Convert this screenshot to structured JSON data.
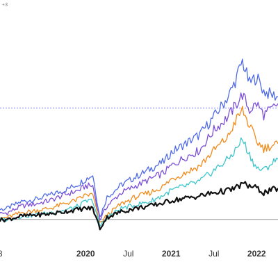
{
  "chart_data": {
    "type": "line",
    "title": "",
    "xlabel": "",
    "ylabel": "",
    "x_ticks": [
      {
        "date": "2019-01",
        "label": "8",
        "bold": false
      },
      {
        "date": "2020-01",
        "label": "2020",
        "bold": true
      },
      {
        "date": "2020-07",
        "label": "Jul",
        "bold": false
      },
      {
        "date": "2021-01",
        "label": "2021",
        "bold": true
      },
      {
        "date": "2021-07",
        "label": "Jul",
        "bold": false
      },
      {
        "date": "2022-01",
        "label": "2022",
        "bold": true
      }
    ],
    "reference_lines": [
      {
        "value": 0,
        "style": "solid",
        "color": "#999999"
      },
      {
        "value": 1,
        "style": "dashed",
        "color": "#6b6bf2"
      }
    ],
    "corner_mark": "+3",
    "colors": {
      "blue": "#4f6ae6",
      "purple": "#7c4fd6",
      "orange": "#f28a1a",
      "cyan": "#3ec5cc",
      "black": "#111111"
    },
    "ylim": [
      -0.12,
      1.75
    ],
    "xlim": [
      "2018-12",
      "2022-04"
    ],
    "series": [
      {
        "color": "#4f6ae6",
        "points": [
          [
            "2018-12",
            0.08
          ],
          [
            "2019-02",
            0.1
          ],
          [
            "2019-04",
            0.16
          ],
          [
            "2019-06",
            0.18
          ],
          [
            "2019-08",
            0.22
          ],
          [
            "2019-10",
            0.26
          ],
          [
            "2019-12",
            0.32
          ],
          [
            "2020-01",
            0.36
          ],
          [
            "2020-02",
            0.4
          ],
          [
            "2020-03",
            0.02
          ],
          [
            "2020-04",
            0.2
          ],
          [
            "2020-06",
            0.31
          ],
          [
            "2020-08",
            0.38
          ],
          [
            "2020-10",
            0.45
          ],
          [
            "2020-12",
            0.52
          ],
          [
            "2021-01",
            0.6
          ],
          [
            "2021-03",
            0.68
          ],
          [
            "2021-05",
            0.76
          ],
          [
            "2021-07",
            0.92
          ],
          [
            "2021-09",
            1.1
          ],
          [
            "2021-10",
            1.24
          ],
          [
            "2021-11",
            1.42
          ],
          [
            "2021-12",
            1.22
          ],
          [
            "2022-01",
            1.28
          ],
          [
            "2022-02",
            1.15
          ],
          [
            "2022-03",
            1.12
          ],
          [
            "2022-04",
            1.1
          ]
        ]
      },
      {
        "color": "#7c4fd6",
        "points": [
          [
            "2018-12",
            0.04
          ],
          [
            "2019-02",
            0.06
          ],
          [
            "2019-04",
            0.12
          ],
          [
            "2019-06",
            0.14
          ],
          [
            "2019-08",
            0.17
          ],
          [
            "2019-10",
            0.22
          ],
          [
            "2019-12",
            0.26
          ],
          [
            "2020-01",
            0.3
          ],
          [
            "2020-02",
            0.3
          ],
          [
            "2020-03",
            0.0
          ],
          [
            "2020-04",
            0.12
          ],
          [
            "2020-06",
            0.24
          ],
          [
            "2020-08",
            0.3
          ],
          [
            "2020-10",
            0.36
          ],
          [
            "2020-12",
            0.42
          ],
          [
            "2021-01",
            0.48
          ],
          [
            "2021-03",
            0.56
          ],
          [
            "2021-05",
            0.62
          ],
          [
            "2021-07",
            0.8
          ],
          [
            "2021-09",
            0.92
          ],
          [
            "2021-10",
            1.02
          ],
          [
            "2021-11",
            1.12
          ],
          [
            "2021-12",
            0.98
          ],
          [
            "2022-01",
            1.04
          ],
          [
            "2022-02",
            0.94
          ],
          [
            "2022-03",
            0.98
          ],
          [
            "2022-04",
            1.04
          ]
        ]
      },
      {
        "color": "#f28a1a",
        "points": [
          [
            "2018-12",
            0.0
          ],
          [
            "2019-02",
            0.02
          ],
          [
            "2019-04",
            0.06
          ],
          [
            "2019-06",
            0.08
          ],
          [
            "2019-08",
            0.1
          ],
          [
            "2019-10",
            0.14
          ],
          [
            "2019-12",
            0.18
          ],
          [
            "2020-01",
            0.22
          ],
          [
            "2020-02",
            0.22
          ],
          [
            "2020-03",
            -0.04
          ],
          [
            "2020-04",
            0.04
          ],
          [
            "2020-06",
            0.14
          ],
          [
            "2020-08",
            0.2
          ],
          [
            "2020-10",
            0.24
          ],
          [
            "2020-12",
            0.3
          ],
          [
            "2021-01",
            0.36
          ],
          [
            "2021-03",
            0.42
          ],
          [
            "2021-05",
            0.48
          ],
          [
            "2021-07",
            0.62
          ],
          [
            "2021-09",
            0.74
          ],
          [
            "2021-10",
            0.88
          ],
          [
            "2021-11",
            0.98
          ],
          [
            "2021-12",
            0.84
          ],
          [
            "2022-01",
            0.7
          ],
          [
            "2022-02",
            0.64
          ],
          [
            "2022-03",
            0.66
          ],
          [
            "2022-04",
            0.68
          ]
        ]
      },
      {
        "color": "#3ec5cc",
        "points": [
          [
            "2018-12",
            0.0
          ],
          [
            "2019-02",
            0.0
          ],
          [
            "2019-04",
            0.03
          ],
          [
            "2019-06",
            0.04
          ],
          [
            "2019-08",
            0.06
          ],
          [
            "2019-10",
            0.08
          ],
          [
            "2019-12",
            0.12
          ],
          [
            "2020-01",
            0.16
          ],
          [
            "2020-02",
            0.17
          ],
          [
            "2020-03",
            -0.06
          ],
          [
            "2020-04",
            0.02
          ],
          [
            "2020-06",
            0.1
          ],
          [
            "2020-08",
            0.13
          ],
          [
            "2020-10",
            0.16
          ],
          [
            "2020-12",
            0.22
          ],
          [
            "2021-01",
            0.26
          ],
          [
            "2021-03",
            0.3
          ],
          [
            "2021-05",
            0.34
          ],
          [
            "2021-07",
            0.44
          ],
          [
            "2021-09",
            0.54
          ],
          [
            "2021-10",
            0.62
          ],
          [
            "2021-11",
            0.72
          ],
          [
            "2021-12",
            0.58
          ],
          [
            "2022-01",
            0.46
          ],
          [
            "2022-02",
            0.44
          ],
          [
            "2022-03",
            0.5
          ],
          [
            "2022-04",
            0.54
          ]
        ]
      },
      {
        "color": "#111111",
        "points": [
          [
            "2018-12",
            -0.01
          ],
          [
            "2019-02",
            0.0
          ],
          [
            "2019-04",
            0.03
          ],
          [
            "2019-06",
            0.04
          ],
          [
            "2019-08",
            0.05
          ],
          [
            "2019-10",
            0.07
          ],
          [
            "2019-12",
            0.09
          ],
          [
            "2020-01",
            0.1
          ],
          [
            "2020-02",
            0.1
          ],
          [
            "2020-03",
            -0.08
          ],
          [
            "2020-04",
            0.02
          ],
          [
            "2020-06",
            0.07
          ],
          [
            "2020-08",
            0.1
          ],
          [
            "2020-10",
            0.12
          ],
          [
            "2020-12",
            0.15
          ],
          [
            "2021-01",
            0.17
          ],
          [
            "2021-03",
            0.19
          ],
          [
            "2021-05",
            0.21
          ],
          [
            "2021-07",
            0.24
          ],
          [
            "2021-09",
            0.26
          ],
          [
            "2021-10",
            0.28
          ],
          [
            "2021-11",
            0.32
          ],
          [
            "2021-12",
            0.3
          ],
          [
            "2022-01",
            0.28
          ],
          [
            "2022-02",
            0.24
          ],
          [
            "2022-03",
            0.26
          ],
          [
            "2022-04",
            0.28
          ]
        ]
      }
    ]
  }
}
